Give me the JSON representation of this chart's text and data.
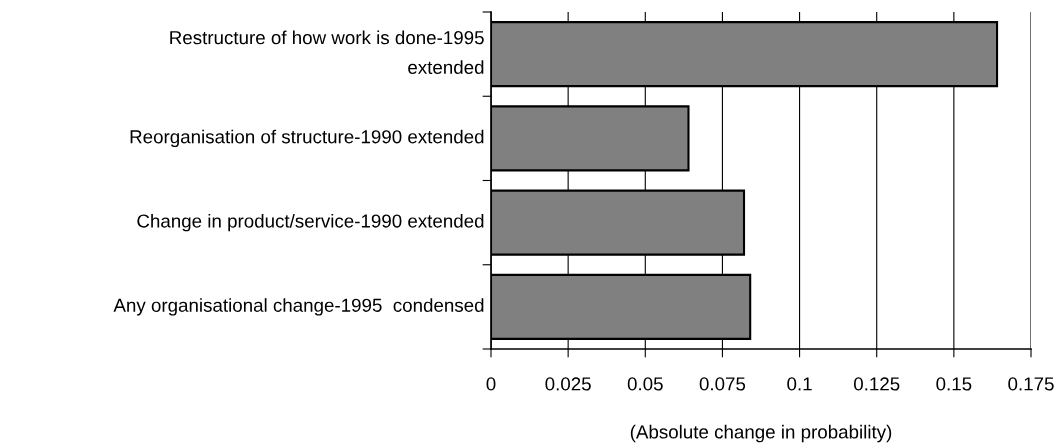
{
  "chart_data": {
    "type": "bar",
    "orientation": "horizontal",
    "xlabel": "(Absolute change in probability)",
    "categories": [
      "Restructure of how work is done-1995\nextended",
      "Reorganisation of structure-1990 extended",
      "Change in product/service-1990 extended",
      "Any organisational change-1995  condensed"
    ],
    "values": [
      0.164,
      0.064,
      0.082,
      0.084
    ],
    "color": "#808080",
    "xlim": [
      0,
      0.175
    ],
    "xticks": [
      0,
      0.025,
      0.05,
      0.075,
      0.1,
      0.125,
      0.15,
      0.175
    ],
    "grid": "x",
    "legend": false
  }
}
